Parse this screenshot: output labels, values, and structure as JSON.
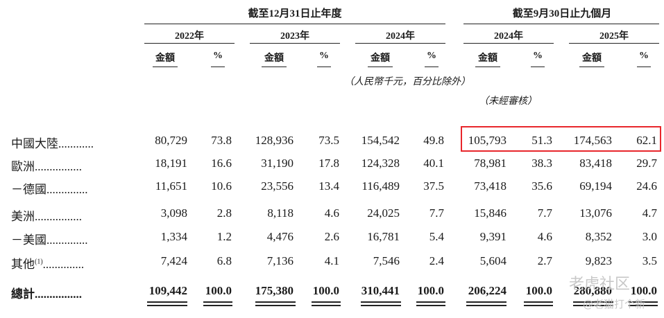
{
  "header": {
    "group_fy": "截至12月31日止年度",
    "group_9m": "截至9月30日止九個月",
    "years": [
      "2022年",
      "2023年",
      "2024年",
      "2024年",
      "2025年"
    ],
    "amount": "金額",
    "pct": "%",
    "unit_note": "（人民幣千元，百分比除外）",
    "unaudited": "（未經審核）"
  },
  "rows": [
    {
      "label": "中國大陸",
      "dots": "............",
      "values": [
        "80,729",
        "73.8",
        "128,936",
        "73.5",
        "154,542",
        "49.8",
        "105,793",
        "51.3",
        "174,563",
        "62.1"
      ]
    },
    {
      "label": "歐洲",
      "dots": "................",
      "values": [
        "18,191",
        "16.6",
        "31,190",
        "17.8",
        "124,328",
        "40.1",
        "78,981",
        "38.3",
        "83,418",
        "29.7"
      ]
    },
    {
      "label": "－德國",
      "dots": "..............",
      "values": [
        "11,651",
        "10.6",
        "23,556",
        "13.4",
        "116,489",
        "37.5",
        "73,418",
        "35.6",
        "69,194",
        "24.6"
      ]
    },
    {
      "label": "美洲",
      "dots": "................",
      "values": [
        "3,098",
        "2.8",
        "8,118",
        "4.6",
        "24,025",
        "7.7",
        "15,846",
        "7.7",
        "13,076",
        "4.7"
      ]
    },
    {
      "label": "－美國",
      "dots": "..............",
      "values": [
        "1,334",
        "1.2",
        "4,476",
        "2.6",
        "16,781",
        "5.4",
        "9,391",
        "4.6",
        "8,352",
        "3.0"
      ]
    },
    {
      "label": "其他",
      "sup": "(1)",
      "dots": "..............",
      "values": [
        "7,424",
        "6.8",
        "7,136",
        "4.1",
        "7,546",
        "2.4",
        "5,604",
        "2.7",
        "9,823",
        "3.5"
      ]
    }
  ],
  "total": {
    "label": "總計",
    "dots": "................",
    "values": [
      "109,442",
      "100.0",
      "175,380",
      "100.0",
      "310,441",
      "100.0",
      "206,224",
      "100.0",
      "280,880",
      "100.0"
    ]
  },
  "highlight_color": "#e8262b",
  "watermark": {
    "line1": "老虎社区",
    "line2": "@老猫打个新"
  }
}
